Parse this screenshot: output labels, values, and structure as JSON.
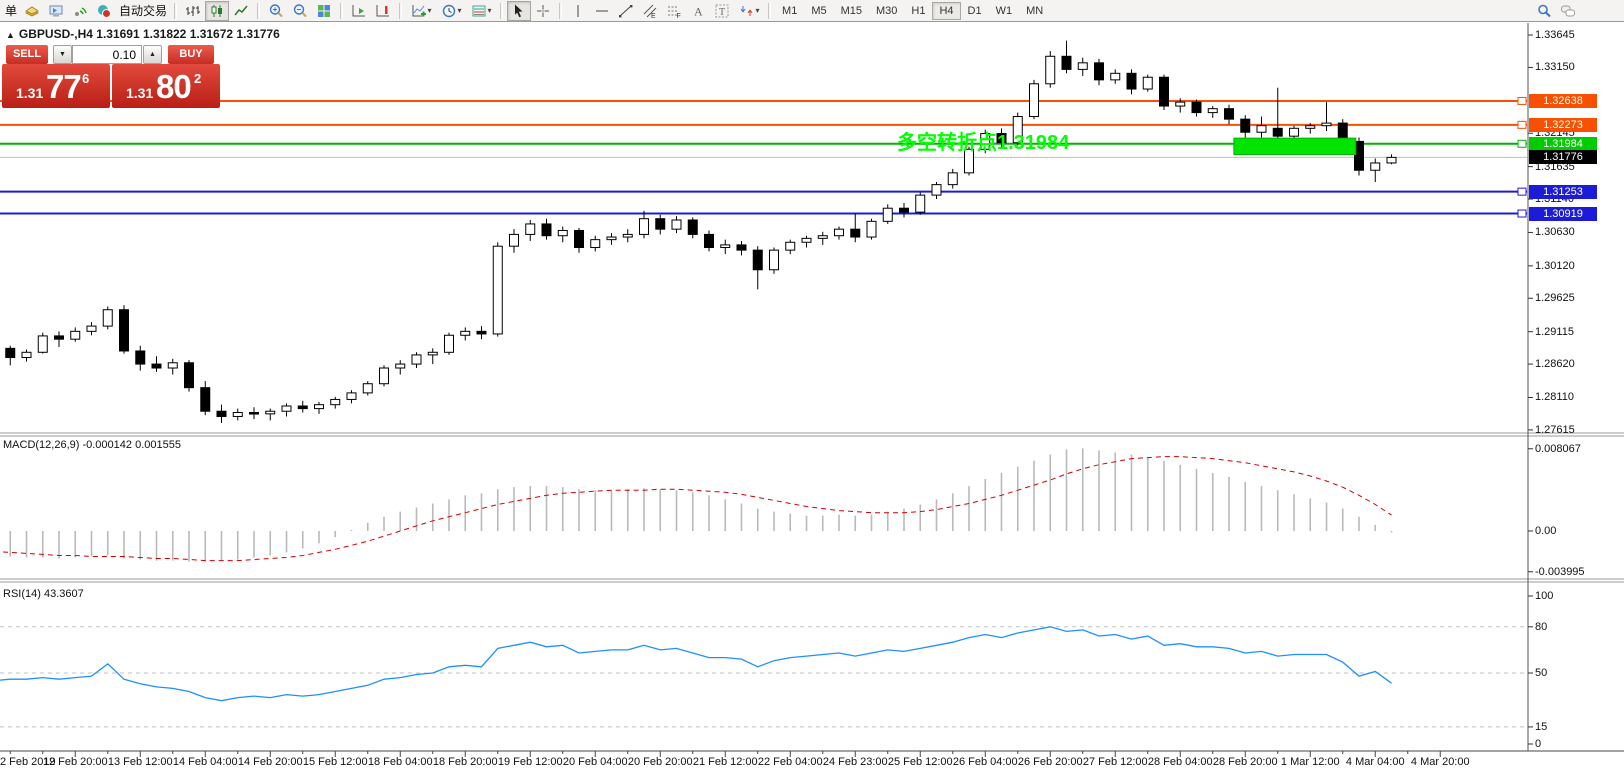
{
  "app": {
    "partial_menu_label": "单",
    "autotrading_label": "自动交易"
  },
  "toolbar": {
    "buttons": [
      {
        "name": "new-order-partial-label",
        "text_only": true
      },
      {
        "name": "gold-icon",
        "icon": "gold"
      },
      {
        "name": "metaeditor-icon",
        "icon": "terminal"
      },
      {
        "name": "signal-icon",
        "icon": "signal"
      },
      {
        "name": "autotrading-button",
        "icon": "autotrade",
        "with_label": true
      },
      {
        "type": "sep"
      },
      {
        "name": "bar-chart-button",
        "icon": "bars"
      },
      {
        "name": "candlestick-chart-button",
        "icon": "candlesi",
        "active": true
      },
      {
        "name": "line-chart-button",
        "icon": "linec"
      },
      {
        "type": "sep"
      },
      {
        "name": "zoom-in-button",
        "icon": "zin"
      },
      {
        "name": "zoom-out-button",
        "icon": "zout"
      },
      {
        "name": "tile-windows-button",
        "icon": "tile"
      },
      {
        "type": "sep"
      },
      {
        "name": "auto-scroll-button",
        "icon": "ascroll"
      },
      {
        "name": "chart-shift-button",
        "icon": "shifti"
      },
      {
        "type": "sep"
      },
      {
        "name": "indicators-button",
        "icon": "indic",
        "caret": true
      },
      {
        "name": "periods-button",
        "icon": "clock",
        "caret": true
      },
      {
        "name": "templates-button",
        "icon": "templ",
        "caret": true
      },
      {
        "type": "sep"
      },
      {
        "name": "cursor-button",
        "icon": "cursor",
        "active": true
      },
      {
        "name": "crosshair-button",
        "icon": "cross"
      },
      {
        "type": "sep"
      },
      {
        "name": "vertical-line-button",
        "icon": "vline"
      },
      {
        "name": "horizontal-line-button",
        "icon": "hline"
      },
      {
        "name": "trendline-button",
        "icon": "tline"
      },
      {
        "name": "equidistant-channel-button",
        "icon": "chan"
      },
      {
        "name": "fibonacci-button",
        "icon": "fibo"
      },
      {
        "name": "text-button",
        "icon": "texta"
      },
      {
        "name": "text-label-button",
        "icon": "labelt"
      },
      {
        "name": "arrows-button",
        "icon": "arrows",
        "caret": true
      },
      {
        "type": "sep"
      }
    ],
    "timeframes": [
      "M1",
      "M5",
      "M15",
      "M30",
      "H1",
      "H4",
      "D1",
      "W1",
      "MN"
    ],
    "active_timeframe": "H4",
    "right_buttons": [
      {
        "name": "search-icon",
        "icon": "search"
      },
      {
        "name": "chat-icon",
        "icon": "chat"
      }
    ]
  },
  "symbol_header": {
    "collapse": "▲",
    "text": "GBPUSD-,H4  1.31691 1.31822 1.31672 1.31776"
  },
  "one_click": {
    "sell_label": "SELL",
    "buy_label": "BUY",
    "volume": "0.10",
    "sell_price_main": "1.31",
    "sell_price_big": "77",
    "sell_price_pip": "6",
    "buy_price_main": "1.31",
    "buy_price_big": "80",
    "buy_price_pip": "2"
  },
  "annotation": {
    "text": "多空转折点1.31984"
  },
  "panes": {
    "macd_label": "MACD(12,26,9) -0.000142 0.001555",
    "rsi_label": "RSI(14) 43.3607"
  },
  "axis": {
    "price_ticks": [
      "1.33645",
      "1.33150",
      "1.32145",
      "1.31635",
      "1.31140",
      "1.30630",
      "1.30120",
      "1.29625",
      "1.29115",
      "1.28620",
      "1.28110",
      "1.27615"
    ],
    "badges": [
      {
        "label": "1.32638",
        "price": 1.32638,
        "bg": "#f85000"
      },
      {
        "label": "1.32273",
        "price": 1.32273,
        "bg": "#f85000"
      },
      {
        "label": "1.31984",
        "price": 1.31984,
        "bg": "#00cc00"
      },
      {
        "label": "1.31776",
        "price": 1.31776,
        "bg": "#000000"
      },
      {
        "label": "1.31253",
        "price": 1.31253,
        "bg": "#1c1cd8"
      },
      {
        "label": "1.30919",
        "price": 1.30919,
        "bg": "#1c1cd8"
      }
    ],
    "macd_ticks": [
      {
        "v": 0.008067,
        "label": "0.008067"
      },
      {
        "v": 0,
        "label": "0.00"
      },
      {
        "v": -0.003995,
        "label": "-0.003995"
      }
    ],
    "rsi_ticks": [
      {
        "v": 100,
        "label": "100"
      },
      {
        "v": 80,
        "label": "80"
      },
      {
        "v": 50,
        "label": "50"
      },
      {
        "v": 15,
        "label": "15"
      },
      {
        "v": 0,
        "label": "0"
      }
    ]
  },
  "chart_data": {
    "type": "candlestick",
    "symbol": "GBPUSD-",
    "timeframe": "H4",
    "ohlc_header": {
      "open": "1.31691",
      "high": "1.31822",
      "low": "1.31672",
      "close": "1.31776"
    },
    "levels": [
      {
        "price": 1.32638,
        "color": "#f85000",
        "width": 2,
        "square": true
      },
      {
        "price": 1.32273,
        "color": "#f85000",
        "width": 2,
        "square": true
      },
      {
        "price": 1.31984,
        "color": "#00b400",
        "width": 2,
        "square": true
      },
      {
        "price": 1.31776,
        "color": "#bebebe",
        "width": 1,
        "square": false
      },
      {
        "price": 1.31253,
        "color": "#1c1cd8",
        "width": 2,
        "square": true
      },
      {
        "price": 1.30919,
        "color": "#1c1cd8",
        "width": 2,
        "square": true
      }
    ],
    "highlight_rect": {
      "i1": 76.3,
      "i2": 83.8,
      "price_top": 1.3207,
      "price_bottom": 1.3182,
      "fill": "#00e400",
      "stroke": "#00b400"
    },
    "candles": [
      [
        1.289,
        1.2896,
        1.2868,
        1.2886
      ],
      [
        1.2886,
        1.289,
        1.286,
        1.2872
      ],
      [
        1.2872,
        1.2884,
        1.2866,
        1.288
      ],
      [
        1.288,
        1.291,
        1.2878,
        1.2905
      ],
      [
        1.2905,
        1.2912,
        1.2888,
        1.29
      ],
      [
        1.29,
        1.2918,
        1.2896,
        1.2912
      ],
      [
        1.2912,
        1.2926,
        1.2906,
        1.292
      ],
      [
        1.292,
        1.295,
        1.2915,
        1.2945
      ],
      [
        1.2945,
        1.2952,
        1.2878,
        1.2882
      ],
      [
        1.2882,
        1.289,
        1.2852,
        1.2862
      ],
      [
        1.2862,
        1.2874,
        1.285,
        1.2856
      ],
      [
        1.2856,
        1.287,
        1.2846,
        1.2864
      ],
      [
        1.2864,
        1.2868,
        1.282,
        1.2826
      ],
      [
        1.2826,
        1.2836,
        1.2784,
        1.279
      ],
      [
        1.279,
        1.28,
        1.2772,
        1.2782
      ],
      [
        1.2782,
        1.2794,
        1.2776,
        1.2788
      ],
      [
        1.2788,
        1.2796,
        1.2778,
        1.2786
      ],
      [
        1.2786,
        1.2794,
        1.2776,
        1.279
      ],
      [
        1.279,
        1.2802,
        1.2782,
        1.2798
      ],
      [
        1.2798,
        1.2806,
        1.2788,
        1.2794
      ],
      [
        1.2794,
        1.2804,
        1.2786,
        1.28
      ],
      [
        1.28,
        1.2812,
        1.2794,
        1.2808
      ],
      [
        1.2808,
        1.2822,
        1.2802,
        1.2818
      ],
      [
        1.2818,
        1.2836,
        1.2814,
        1.2832
      ],
      [
        1.2832,
        1.286,
        1.2828,
        1.2856
      ],
      [
        1.2856,
        1.2868,
        1.2846,
        1.2862
      ],
      [
        1.2862,
        1.288,
        1.2856,
        1.2876
      ],
      [
        1.2876,
        1.2886,
        1.2862,
        1.288
      ],
      [
        1.288,
        1.291,
        1.2876,
        1.2906
      ],
      [
        1.2906,
        1.2918,
        1.2898,
        1.2912
      ],
      [
        1.2912,
        1.292,
        1.29,
        1.2908
      ],
      [
        1.2908,
        1.3048,
        1.2904,
        1.3042
      ],
      [
        1.3042,
        1.3068,
        1.3032,
        1.306
      ],
      [
        1.306,
        1.3082,
        1.305,
        1.3076
      ],
      [
        1.3076,
        1.3084,
        1.3052,
        1.3058
      ],
      [
        1.3058,
        1.3072,
        1.3048,
        1.3066
      ],
      [
        1.3066,
        1.307,
        1.3032,
        1.304
      ],
      [
        1.304,
        1.3058,
        1.3034,
        1.3052
      ],
      [
        1.3052,
        1.3062,
        1.3044,
        1.3056
      ],
      [
        1.3056,
        1.3068,
        1.3048,
        1.306
      ],
      [
        1.306,
        1.3096,
        1.3054,
        1.3084
      ],
      [
        1.3084,
        1.309,
        1.306,
        1.3068
      ],
      [
        1.3068,
        1.3088,
        1.3062,
        1.3082
      ],
      [
        1.3082,
        1.3086,
        1.3054,
        1.306
      ],
      [
        1.306,
        1.3066,
        1.3034,
        1.304
      ],
      [
        1.304,
        1.3052,
        1.303,
        1.3044
      ],
      [
        1.3044,
        1.305,
        1.3028,
        1.3036
      ],
      [
        1.3036,
        1.3042,
        1.2976,
        1.3006
      ],
      [
        1.3006,
        1.304,
        1.3,
        1.3036
      ],
      [
        1.3036,
        1.3052,
        1.303,
        1.3048
      ],
      [
        1.3048,
        1.3058,
        1.304,
        1.3054
      ],
      [
        1.3054,
        1.3064,
        1.3044,
        1.3058
      ],
      [
        1.3058,
        1.3072,
        1.3052,
        1.3068
      ],
      [
        1.3068,
        1.3092,
        1.3048,
        1.3056
      ],
      [
        1.3056,
        1.3084,
        1.3052,
        1.308
      ],
      [
        1.308,
        1.3106,
        1.3076,
        1.31
      ],
      [
        1.31,
        1.3108,
        1.3086,
        1.3094
      ],
      [
        1.3094,
        1.3124,
        1.309,
        1.312
      ],
      [
        1.312,
        1.314,
        1.3114,
        1.3136
      ],
      [
        1.3136,
        1.316,
        1.313,
        1.3154
      ],
      [
        1.3154,
        1.3194,
        1.315,
        1.319
      ],
      [
        1.319,
        1.322,
        1.3184,
        1.3214
      ],
      [
        1.3214,
        1.3222,
        1.3192,
        1.32
      ],
      [
        1.32,
        1.3246,
        1.3196,
        1.324
      ],
      [
        1.324,
        1.3296,
        1.3236,
        1.329
      ],
      [
        1.329,
        1.334,
        1.3284,
        1.3332
      ],
      [
        1.3332,
        1.3356,
        1.3306,
        1.3312
      ],
      [
        1.3312,
        1.333,
        1.3302,
        1.3322
      ],
      [
        1.3322,
        1.3328,
        1.3288,
        1.3296
      ],
      [
        1.3296,
        1.3312,
        1.329,
        1.3306
      ],
      [
        1.3306,
        1.3312,
        1.3274,
        1.3282
      ],
      [
        1.3282,
        1.3304,
        1.3278,
        1.33
      ],
      [
        1.33,
        1.3304,
        1.325,
        1.3256
      ],
      [
        1.3256,
        1.3268,
        1.3246,
        1.3262
      ],
      [
        1.3262,
        1.3266,
        1.324,
        1.3246
      ],
      [
        1.3246,
        1.3256,
        1.3238,
        1.3252
      ],
      [
        1.3252,
        1.3258,
        1.3228,
        1.3236
      ],
      [
        1.3236,
        1.3242,
        1.32,
        1.3216
      ],
      [
        1.3216,
        1.324,
        1.3208,
        1.3226
      ],
      [
        1.3222,
        1.3284,
        1.3188,
        1.321
      ],
      [
        1.321,
        1.3226,
        1.3202,
        1.3222
      ],
      [
        1.3222,
        1.323,
        1.3214,
        1.3226
      ],
      [
        1.3226,
        1.3262,
        1.3218,
        1.323
      ],
      [
        1.323,
        1.3236,
        1.3196,
        1.3202
      ],
      [
        1.3202,
        1.3208,
        1.315,
        1.3158
      ],
      [
        1.3158,
        1.3176,
        1.314,
        1.31691
      ],
      [
        1.31691,
        1.31822,
        1.31672,
        1.31776
      ]
    ],
    "macd": {
      "histogram": [
        -0.0024,
        -0.0025,
        -0.0026,
        -0.0026,
        -0.0027,
        -0.0026,
        -0.0025,
        -0.0024,
        -0.0027,
        -0.0028,
        -0.0029,
        -0.0029,
        -0.003,
        -0.003,
        -0.0029,
        -0.0028,
        -0.0026,
        -0.0024,
        -0.0021,
        -0.0017,
        -0.0012,
        -0.0006,
        0.0001,
        0.0008,
        0.0014,
        0.0019,
        0.0023,
        0.0027,
        0.0031,
        0.0035,
        0.0037,
        0.0041,
        0.0043,
        0.0044,
        0.0044,
        0.0043,
        0.0041,
        0.004,
        0.004,
        0.0041,
        0.0042,
        0.0041,
        0.004,
        0.0038,
        0.0035,
        0.0031,
        0.0027,
        0.0022,
        0.0019,
        0.0017,
        0.0015,
        0.0015,
        0.0016,
        0.0015,
        0.0016,
        0.0019,
        0.0022,
        0.0026,
        0.0031,
        0.0037,
        0.0044,
        0.0051,
        0.0057,
        0.0063,
        0.0069,
        0.0075,
        0.008,
        0.0081,
        0.0079,
        0.0077,
        0.0075,
        0.0072,
        0.0069,
        0.0065,
        0.0061,
        0.0057,
        0.0053,
        0.0048,
        0.0044,
        0.004,
        0.0036,
        0.0032,
        0.0028,
        0.0022,
        0.0014,
        0.0006,
        -0.000142
      ],
      "signal": [
        -0.002,
        -0.0021,
        -0.0022,
        -0.0023,
        -0.0024,
        -0.0024,
        -0.0025,
        -0.0025,
        -0.0025,
        -0.0026,
        -0.0027,
        -0.0027,
        -0.0028,
        -0.0029,
        -0.0029,
        -0.0029,
        -0.0028,
        -0.0027,
        -0.0026,
        -0.0024,
        -0.0021,
        -0.0018,
        -0.0014,
        -0.001,
        -0.0005,
        0.0,
        0.0005,
        0.001,
        0.0014,
        0.0018,
        0.0022,
        0.0026,
        0.0029,
        0.0032,
        0.0035,
        0.0037,
        0.0038,
        0.0039,
        0.004,
        0.004,
        0.004,
        0.0041,
        0.0041,
        0.004,
        0.0039,
        0.0038,
        0.0036,
        0.0033,
        0.003,
        0.0027,
        0.0024,
        0.0022,
        0.002,
        0.0019,
        0.0018,
        0.0018,
        0.0018,
        0.0019,
        0.0021,
        0.0024,
        0.0027,
        0.0031,
        0.0035,
        0.004,
        0.0045,
        0.005,
        0.0056,
        0.0061,
        0.0065,
        0.0068,
        0.0071,
        0.0072,
        0.0073,
        0.0073,
        0.0072,
        0.0071,
        0.0069,
        0.0067,
        0.0064,
        0.0061,
        0.0058,
        0.0054,
        0.0049,
        0.0043,
        0.0035,
        0.0026,
        0.001555
      ]
    },
    "rsi": {
      "values": [
        45,
        46,
        46,
        47,
        46,
        47,
        48,
        56,
        46,
        43,
        41,
        40,
        38,
        34,
        32,
        34,
        35,
        34,
        36,
        35,
        36,
        38,
        40,
        42,
        46,
        47,
        49,
        50,
        54,
        55,
        54,
        66,
        68,
        70,
        67,
        68,
        63,
        64,
        65,
        65,
        68,
        65,
        66,
        63,
        60,
        60,
        59,
        54,
        58,
        60,
        61,
        62,
        63,
        61,
        63,
        65,
        64,
        66,
        68,
        70,
        73,
        75,
        73,
        76,
        78,
        80,
        77,
        78,
        74,
        75,
        72,
        74,
        68,
        69,
        67,
        67,
        66,
        63,
        64,
        61,
        62,
        62,
        62,
        57,
        48,
        51,
        43.36
      ],
      "grid_levels": [
        80,
        50,
        15
      ]
    },
    "time_labels": [
      {
        "i": 0,
        "label": "2 Feb 2019",
        "align": "left"
      },
      {
        "i": 5,
        "label": "12 Feb 20:00"
      },
      {
        "i": 9,
        "label": "13 Feb 12:00"
      },
      {
        "i": 13,
        "label": "14 Feb 04:00"
      },
      {
        "i": 17,
        "label": "14 Feb 20:00"
      },
      {
        "i": 21,
        "label": "15 Feb 12:00"
      },
      {
        "i": 25,
        "label": "18 Feb 04:00"
      },
      {
        "i": 29,
        "label": "18 Feb 20:00"
      },
      {
        "i": 33,
        "label": "19 Feb 12:00"
      },
      {
        "i": 37,
        "label": "20 Feb 04:00"
      },
      {
        "i": 41,
        "label": "20 Feb 20:00"
      },
      {
        "i": 45,
        "label": "21 Feb 12:00"
      },
      {
        "i": 49,
        "label": "22 Feb 04:00"
      },
      {
        "i": 53,
        "label": "24 Feb 23:00"
      },
      {
        "i": 57,
        "label": "25 Feb 12:00"
      },
      {
        "i": 61,
        "label": "26 Feb 04:00"
      },
      {
        "i": 65,
        "label": "26 Feb 20:00"
      },
      {
        "i": 69,
        "label": "27 Feb 12:00"
      },
      {
        "i": 73,
        "label": "28 Feb 04:00"
      },
      {
        "i": 77,
        "label": "28 Feb 20:00"
      },
      {
        "i": 81,
        "label": "1 Mar 12:00"
      },
      {
        "i": 85,
        "label": "4 Mar 04:00"
      },
      {
        "i": 89,
        "label": "4 Mar 20:00"
      }
    ]
  }
}
